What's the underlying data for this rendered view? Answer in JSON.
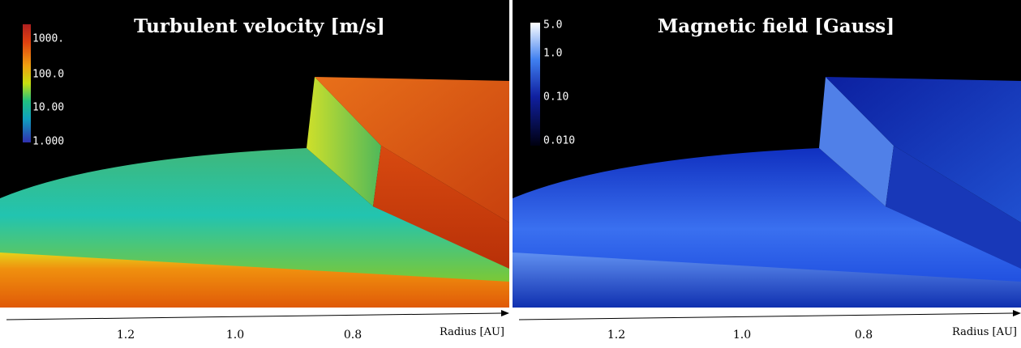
{
  "panels": [
    {
      "title": "Turbulent velocity [m/s]",
      "colorbar": {
        "labels": [
          "1000.",
          "100.0",
          "10.00",
          "1.000"
        ]
      },
      "axis": {
        "ticks": [
          "1.2",
          "1.0",
          "0.8"
        ],
        "label": "Radius [AU]"
      }
    },
    {
      "title": "Magnetic field [Gauss]",
      "colorbar": {
        "labels": [
          "5.0",
          "1.0",
          "0.10",
          "0.010"
        ]
      },
      "axis": {
        "ticks": [
          "1.2",
          "1.0",
          "0.8"
        ],
        "label": "Radius [AU]"
      }
    }
  ]
}
